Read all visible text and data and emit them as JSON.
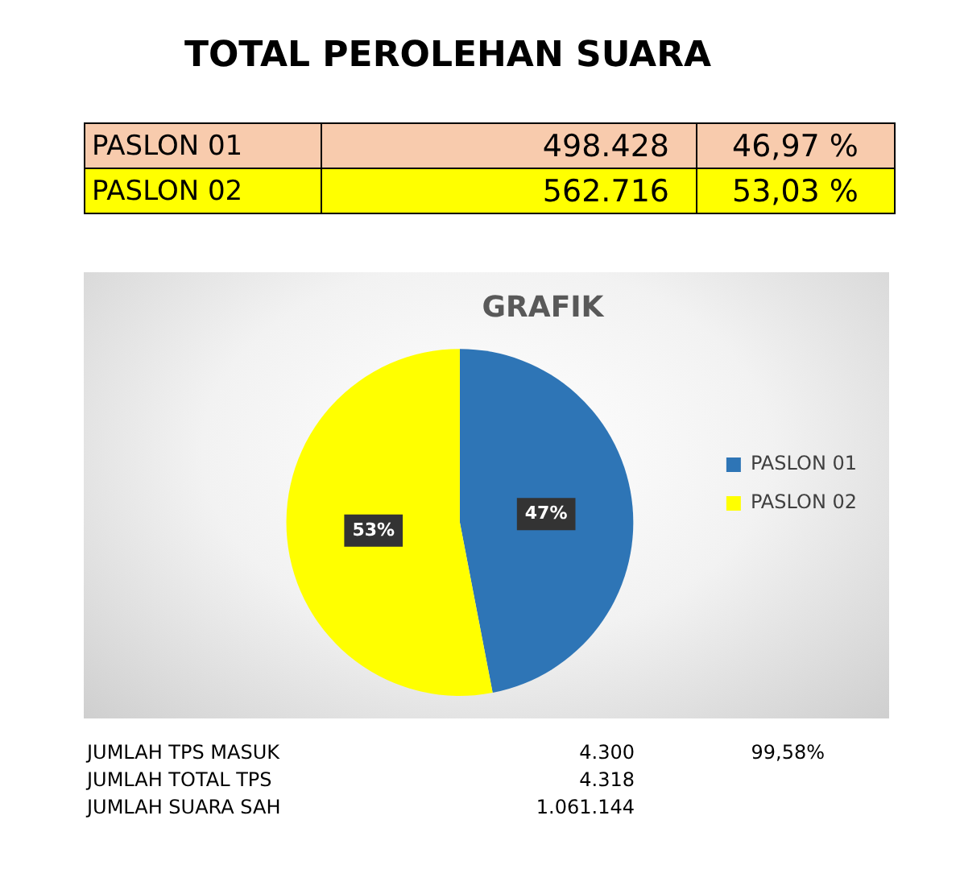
{
  "chart_data": {
    "type": "pie",
    "title": "TOTAL PEROLEHAN SUARA",
    "subtitle": "GRAFIK",
    "categories": [
      "PASLON 01",
      "PASLON 02"
    ],
    "values": [
      46.97,
      53.03
    ],
    "colors": [
      "#2e75b6",
      "#ffff00"
    ],
    "value_labels": [
      "47%",
      "53%"
    ],
    "legend": "right",
    "annotations": [
      "498.428",
      "46,97 %",
      "562.716",
      "53,03 %",
      "JUMLAH TPS MASUK\t4.300\t99,58%",
      "JUMLAH TOTAL TPS\t4.318",
      "JUMLAH SUARA SAH\t1.061.144"
    ]
  }
}
